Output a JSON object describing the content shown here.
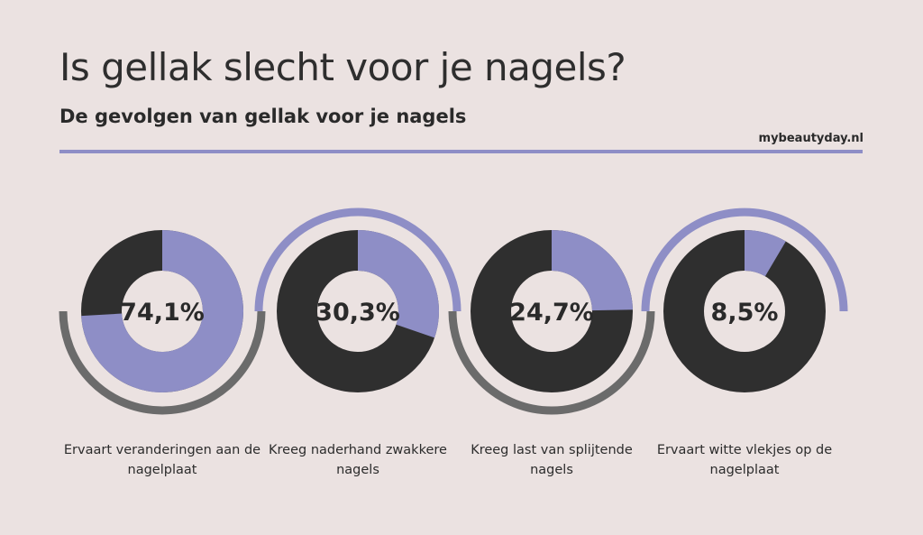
{
  "header": {
    "title": "Is gellak slecht voor je nagels?",
    "subtitle": "De gevolgen van gellak voor je nagels",
    "brand": "mybeautyday.nl"
  },
  "colors": {
    "background": "#ebe2e1",
    "accent": "#8e8ec6",
    "dark": "#2f2f2f",
    "arc_gray": "#6b6b6b",
    "rule": "#8e8ec6"
  },
  "chart_data": {
    "type": "pie",
    "style": "donut",
    "items": [
      {
        "value": 74.1,
        "label": "74,1%",
        "caption": "Ervaart veranderingen aan de nagelplaat",
        "decor_arc": "bottom"
      },
      {
        "value": 30.3,
        "label": "30,3%",
        "caption": "Kreeg naderhand zwakkere nagels",
        "decor_arc": "top"
      },
      {
        "value": 24.7,
        "label": "24,7%",
        "caption": "Kreeg last van splijtende nagels",
        "decor_arc": "bottom"
      },
      {
        "value": 8.5,
        "label": "8,5%",
        "caption": "Ervaart witte vlekjes op de nagelplaat",
        "decor_arc": "top"
      }
    ]
  }
}
